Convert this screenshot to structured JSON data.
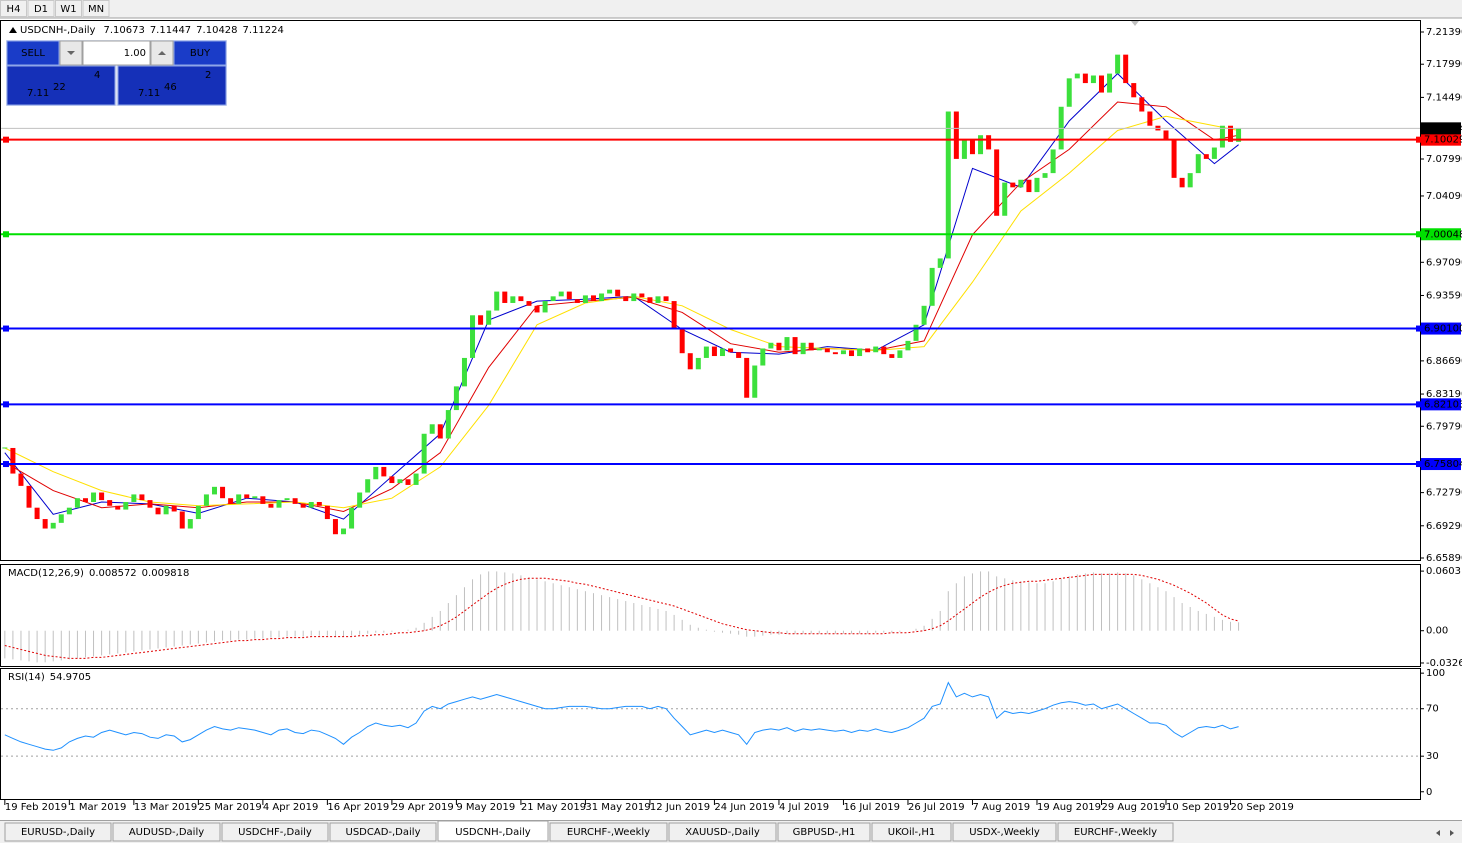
{
  "timeframes": [
    "H4",
    "D1",
    "W1",
    "MN"
  ],
  "trade_panel": {
    "sell": "SELL",
    "buy": "BUY",
    "lot": "1.00",
    "sell_price": {
      "big": "7.11",
      "main": "22",
      "pip": "4"
    },
    "buy_price": {
      "big": "7.11",
      "main": "46",
      "pip": "2"
    }
  },
  "tabs": [
    "EURUSD-,Daily",
    "AUDUSD-,Daily",
    "USDCHF-,Daily",
    "USDCAD-,Daily",
    "USDCNH-,Daily",
    "EURCHF-,Weekly",
    "XAUUSD-,Daily",
    "GBPUSD-,H1",
    "UKOil-,H1",
    "USDX-,Weekly",
    "EURCHF-,Weekly"
  ],
  "active_tab": 4,
  "chart_data": [
    {
      "type": "candlestick",
      "title": "USDCNH-,Daily",
      "last_bar": {
        "open": 7.10673,
        "high": 7.11447,
        "low": 7.10428
      },
      "up_color": "#3ce03c",
      "down_color": "#ff0000",
      "close": [
        6.775,
        6.748,
        6.735,
        6.712,
        6.7,
        6.69,
        6.696,
        6.705,
        6.712,
        6.722,
        6.718,
        6.728,
        6.72,
        6.714,
        6.71,
        6.718,
        6.726,
        6.72,
        6.712,
        6.705,
        6.714,
        6.708,
        6.69,
        6.7,
        6.714,
        6.726,
        6.734,
        6.722,
        6.716,
        6.726,
        6.722,
        6.724,
        6.716,
        6.712,
        6.72,
        6.722,
        6.716,
        6.712,
        6.718,
        6.714,
        6.7,
        6.684,
        6.69,
        6.712,
        6.728,
        6.742,
        6.755,
        6.745,
        6.738,
        6.742,
        6.736,
        6.748,
        6.79,
        6.8,
        6.785,
        6.815,
        6.84,
        6.87,
        6.915,
        6.905,
        6.92,
        6.94,
        6.928,
        6.935,
        6.93,
        6.925,
        6.918,
        6.93,
        6.935,
        6.94,
        6.932,
        6.928,
        6.936,
        6.93,
        6.938,
        6.942,
        6.935,
        6.93,
        6.938,
        6.934,
        6.928,
        6.935,
        6.93,
        6.9,
        6.875,
        6.858,
        6.87,
        6.882,
        6.872,
        6.88,
        6.876,
        6.87,
        6.828,
        6.862,
        6.88,
        6.886,
        6.878,
        6.892,
        6.874,
        6.886,
        6.878,
        6.88,
        6.876,
        6.874,
        6.878,
        6.872,
        6.88,
        6.876,
        6.882,
        6.874,
        6.87,
        6.878,
        6.888,
        6.905,
        6.925,
        6.965,
        6.975,
        7.13,
        7.08,
        7.1,
        7.085,
        7.105,
        7.09,
        7.02,
        7.055,
        7.05,
        7.058,
        7.045,
        7.06,
        7.065,
        7.09,
        7.135,
        7.165,
        7.17,
        7.16,
        7.168,
        7.15,
        7.17,
        7.19,
        7.16,
        7.145,
        7.13,
        7.115,
        7.11,
        7.1,
        7.06,
        7.05,
        7.065,
        7.085,
        7.08,
        7.092,
        7.115,
        7.098,
        7.11224
      ],
      "overlays": [
        {
          "color": "#0000cd",
          "x": [
            0,
            6,
            12,
            18,
            24,
            30,
            36,
            42,
            48,
            54,
            60,
            66,
            72,
            78,
            84,
            90,
            96,
            102,
            108,
            114,
            120,
            126,
            132,
            138,
            144,
            150,
            153
          ],
          "values": [
            6.77,
            6.705,
            6.718,
            6.716,
            6.706,
            6.722,
            6.718,
            6.7,
            6.745,
            6.79,
            6.91,
            6.93,
            6.932,
            6.935,
            6.9,
            6.876,
            6.874,
            6.882,
            6.878,
            6.905,
            7.07,
            7.05,
            7.12,
            7.17,
            7.12,
            7.075,
            7.095
          ]
        },
        {
          "color": "#e00000",
          "x": [
            0,
            6,
            12,
            18,
            24,
            30,
            36,
            42,
            48,
            54,
            60,
            66,
            72,
            78,
            84,
            90,
            96,
            102,
            108,
            114,
            120,
            126,
            132,
            138,
            144,
            150,
            153
          ],
          "values": [
            6.76,
            6.73,
            6.712,
            6.716,
            6.712,
            6.718,
            6.718,
            6.708,
            6.732,
            6.77,
            6.86,
            6.925,
            6.93,
            6.934,
            6.918,
            6.885,
            6.876,
            6.88,
            6.878,
            6.888,
            7.0,
            7.055,
            7.09,
            7.14,
            7.135,
            7.1,
            7.105
          ]
        },
        {
          "color": "#ffe000",
          "x": [
            0,
            6,
            12,
            18,
            24,
            30,
            36,
            42,
            48,
            54,
            60,
            66,
            72,
            78,
            84,
            90,
            96,
            102,
            108,
            114,
            120,
            126,
            132,
            138,
            144,
            150,
            153
          ],
          "values": [
            6.775,
            6.75,
            6.73,
            6.718,
            6.714,
            6.716,
            6.718,
            6.712,
            6.722,
            6.755,
            6.82,
            6.905,
            6.928,
            6.935,
            6.925,
            6.9,
            6.882,
            6.88,
            6.878,
            6.882,
            6.95,
            7.025,
            7.065,
            7.11,
            7.125,
            7.115,
            7.11
          ]
        }
      ],
      "levels": [
        {
          "value": 7.10029,
          "color": "#ff0000"
        },
        {
          "value": 7.00048,
          "color": "#00e000"
        },
        {
          "value": 6.901,
          "label": "6.90100",
          "color": "#0000ff"
        },
        {
          "value": 6.82103,
          "color": "#0000ff"
        },
        {
          "value": 6.75804,
          "color": "#0000ff"
        }
      ],
      "xlim": [
        -0.6,
        175.5
      ],
      "xticks": [
        {
          "value": 0,
          "label": "19 Feb 2019"
        },
        {
          "value": 8,
          "label": "1 Mar 2019"
        },
        {
          "value": 16,
          "label": "13 Mar 2019"
        },
        {
          "value": 24,
          "label": "25 Mar 2019"
        },
        {
          "value": 32,
          "label": "4 Apr 2019"
        },
        {
          "value": 40,
          "label": "16 Apr 2019"
        },
        {
          "value": 48,
          "label": "29 Apr 2019"
        },
        {
          "value": 56,
          "label": "9 May 2019"
        },
        {
          "value": 64,
          "label": "21 May 2019"
        },
        {
          "value": 72,
          "label": "31 May 2019"
        },
        {
          "value": 80,
          "label": "12 Jun 2019"
        },
        {
          "value": 88,
          "label": "24 Jun 2019"
        },
        {
          "value": 96,
          "label": "4 Jul 2019"
        },
        {
          "value": 104,
          "label": "16 Jul 2019"
        },
        {
          "value": 112,
          "label": "26 Jul 2019"
        },
        {
          "value": 120,
          "label": "7 Aug 2019"
        },
        {
          "value": 128,
          "label": "19 Aug 2019"
        },
        {
          "value": 136,
          "label": "29 Aug 2019"
        },
        {
          "value": 144,
          "label": "10 Sep 2019"
        },
        {
          "value": 152,
          "label": "20 Sep 2019"
        }
      ],
      "ylim": [
        6.6568,
        7.2255
      ],
      "yticks": [
        {
          "value": 7.2139,
          "label": "7.21390"
        },
        {
          "value": 7.1799,
          "label": "7.17990"
        },
        {
          "value": 7.1449,
          "label": "7.14490"
        },
        {
          "value": 7.0799,
          "label": "7.07990"
        },
        {
          "value": 7.0409,
          "label": "7.04090"
        },
        {
          "value": 6.9709,
          "label": "6.97090"
        },
        {
          "value": 6.9359,
          "label": "6.93590"
        },
        {
          "value": 6.8669,
          "label": "6.86690"
        },
        {
          "value": 6.8319,
          "label": "6.83190"
        },
        {
          "value": 6.7979,
          "label": "6.79790"
        },
        {
          "value": 6.7279,
          "label": "6.72790"
        },
        {
          "value": 6.6929,
          "label": "6.69290"
        },
        {
          "value": 6.6589,
          "label": "6.65890"
        }
      ]
    },
    {
      "type": "macd",
      "title": "MACD(12,26,9)",
      "color": "#c0c0c0",
      "signal_color": "#e00000",
      "histogram": [
        -0.028,
        -0.029,
        -0.03,
        -0.031,
        -0.032,
        -0.032,
        -0.031,
        -0.03,
        -0.029,
        -0.028,
        -0.027,
        -0.026,
        -0.025,
        -0.024,
        -0.023,
        -0.022,
        -0.021,
        -0.02,
        -0.019,
        -0.018,
        -0.017,
        -0.016,
        -0.015,
        -0.014,
        -0.013,
        -0.012,
        -0.011,
        -0.01,
        -0.01,
        -0.009,
        -0.009,
        -0.008,
        -0.008,
        -0.007,
        -0.007,
        -0.006,
        -0.006,
        -0.006,
        -0.005,
        -0.005,
        -0.005,
        -0.006,
        -0.006,
        -0.005,
        -0.004,
        -0.003,
        -0.002,
        -0.002,
        -0.001,
        0.0,
        0.001,
        0.003,
        0.008,
        0.014,
        0.02,
        0.028,
        0.036,
        0.044,
        0.052,
        0.057,
        0.06,
        0.06,
        0.059,
        0.058,
        0.056,
        0.054,
        0.052,
        0.05,
        0.048,
        0.046,
        0.044,
        0.042,
        0.04,
        0.038,
        0.036,
        0.034,
        0.032,
        0.03,
        0.028,
        0.026,
        0.024,
        0.022,
        0.02,
        0.016,
        0.011,
        0.006,
        0.003,
        0.001,
        -0.001,
        -0.002,
        -0.003,
        -0.004,
        -0.006,
        -0.006,
        -0.005,
        -0.004,
        -0.004,
        -0.003,
        -0.003,
        -0.003,
        -0.003,
        -0.003,
        -0.003,
        -0.003,
        -0.003,
        -0.003,
        -0.003,
        -0.003,
        -0.002,
        -0.002,
        -0.002,
        -0.001,
        0.0,
        0.002,
        0.005,
        0.012,
        0.02,
        0.04,
        0.048,
        0.055,
        0.058,
        0.06,
        0.06,
        0.055,
        0.053,
        0.051,
        0.05,
        0.049,
        0.048,
        0.048,
        0.05,
        0.053,
        0.055,
        0.057,
        0.058,
        0.059,
        0.058,
        0.058,
        0.059,
        0.058,
        0.056,
        0.052,
        0.048,
        0.044,
        0.04,
        0.034,
        0.028,
        0.024,
        0.02,
        0.017,
        0.014,
        0.011,
        0.009,
        0.008572
      ],
      "signal": [
        -0.015,
        -0.017,
        -0.019,
        -0.021,
        -0.023,
        -0.025,
        -0.026,
        -0.027,
        -0.028,
        -0.028,
        -0.028,
        -0.027,
        -0.027,
        -0.026,
        -0.025,
        -0.024,
        -0.023,
        -0.022,
        -0.021,
        -0.02,
        -0.019,
        -0.018,
        -0.017,
        -0.016,
        -0.015,
        -0.014,
        -0.013,
        -0.012,
        -0.011,
        -0.01,
        -0.01,
        -0.009,
        -0.009,
        -0.008,
        -0.008,
        -0.007,
        -0.007,
        -0.007,
        -0.006,
        -0.006,
        -0.006,
        -0.006,
        -0.006,
        -0.006,
        -0.005,
        -0.005,
        -0.004,
        -0.004,
        -0.003,
        -0.002,
        -0.002,
        -0.001,
        0.0,
        0.002,
        0.005,
        0.009,
        0.014,
        0.02,
        0.026,
        0.032,
        0.038,
        0.043,
        0.047,
        0.05,
        0.052,
        0.053,
        0.053,
        0.053,
        0.052,
        0.051,
        0.05,
        0.048,
        0.047,
        0.045,
        0.043,
        0.041,
        0.039,
        0.037,
        0.035,
        0.033,
        0.031,
        0.029,
        0.027,
        0.025,
        0.022,
        0.019,
        0.016,
        0.013,
        0.01,
        0.007,
        0.005,
        0.003,
        0.001,
        0.0,
        -0.001,
        -0.002,
        -0.002,
        -0.003,
        -0.003,
        -0.003,
        -0.003,
        -0.003,
        -0.003,
        -0.003,
        -0.003,
        -0.003,
        -0.003,
        -0.003,
        -0.003,
        -0.003,
        -0.002,
        -0.002,
        -0.002,
        -0.001,
        0.0,
        0.002,
        0.005,
        0.01,
        0.016,
        0.022,
        0.028,
        0.034,
        0.039,
        0.043,
        0.046,
        0.048,
        0.049,
        0.05,
        0.05,
        0.051,
        0.052,
        0.053,
        0.054,
        0.055,
        0.056,
        0.057,
        0.057,
        0.057,
        0.057,
        0.057,
        0.057,
        0.056,
        0.054,
        0.052,
        0.049,
        0.046,
        0.042,
        0.038,
        0.033,
        0.028,
        0.022,
        0.016,
        0.012,
        0.009818
      ],
      "ylim": [
        -0.0357,
        0.0665
      ],
      "yticks": [
        0.060317,
        {
          "value": 0,
          "label": "0.00"
        },
        -0.032648
      ]
    },
    {
      "type": "rsi",
      "title": "RSI(14)",
      "color": "#1e90ff",
      "values": [
        48,
        45,
        42,
        40,
        38,
        36,
        35,
        37,
        42,
        45,
        47,
        46,
        50,
        52,
        50,
        48,
        50,
        49,
        46,
        45,
        48,
        47,
        42,
        44,
        48,
        52,
        55,
        53,
        52,
        54,
        53,
        52,
        50,
        48,
        52,
        53,
        50,
        49,
        52,
        51,
        48,
        45,
        40,
        46,
        50,
        55,
        58,
        56,
        55,
        56,
        54,
        58,
        68,
        72,
        70,
        74,
        76,
        78,
        80,
        78,
        80,
        82,
        80,
        78,
        76,
        74,
        72,
        70,
        70,
        71,
        72,
        72,
        72,
        71,
        70,
        70,
        71,
        72,
        72,
        72,
        70,
        72,
        70,
        62,
        55,
        48,
        50,
        52,
        50,
        52,
        50,
        48,
        40,
        50,
        52,
        53,
        52,
        54,
        51,
        53,
        52,
        53,
        52,
        51,
        52,
        50,
        52,
        51,
        53,
        51,
        50,
        52,
        54,
        58,
        62,
        72,
        74,
        92,
        80,
        83,
        80,
        82,
        80,
        62,
        68,
        66,
        67,
        66,
        68,
        70,
        73,
        75,
        76,
        75,
        73,
        74,
        70,
        72,
        74,
        70,
        66,
        62,
        58,
        58,
        56,
        50,
        46,
        50,
        54,
        55,
        54,
        56,
        53,
        54.9705
      ],
      "dashed_levels": [
        70,
        30
      ],
      "ylim": [
        -6.1,
        103.5
      ],
      "yticks": [
        100,
        70,
        30,
        0
      ]
    }
  ]
}
